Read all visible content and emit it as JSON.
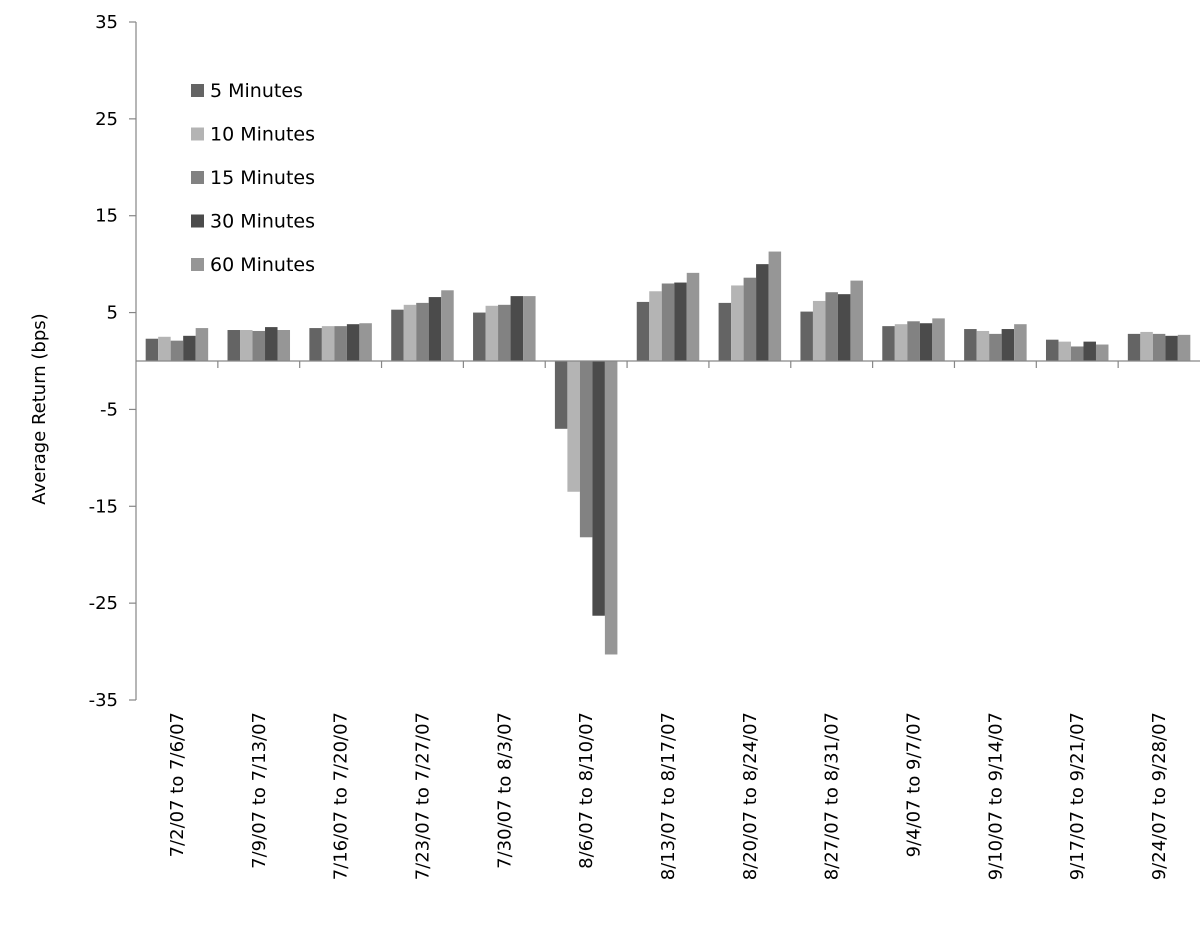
{
  "chart_data": {
    "type": "bar",
    "title": "",
    "xlabel": "",
    "ylabel": "Average Return (bps)",
    "ylim": [
      -35,
      35
    ],
    "yticks": [
      35,
      25,
      15,
      5,
      -5,
      -15,
      -25,
      -35
    ],
    "grid": false,
    "legend_position": "top-left",
    "categories": [
      "7/2/07 to 7/6/07",
      "7/9/07 to 7/13/07",
      "7/16/07 to 7/20/07",
      "7/23/07 to 7/27/07",
      "7/30/07 to 8/3/07",
      "8/6/07 to 8/10/07",
      "8/13/07 to 8/17/07",
      "8/20/07 to 8/24/07",
      "8/27/07 to 8/31/07",
      "9/4/07 to 9/7/07",
      "9/10/07 to 9/14/07",
      "9/17/07 to 9/21/07",
      "9/24/07 to 9/28/07"
    ],
    "series": [
      {
        "name": "5 Minutes",
        "color": "#646464",
        "values": [
          2.3,
          3.2,
          3.4,
          5.3,
          5.0,
          -7.0,
          6.1,
          6.0,
          5.1,
          3.6,
          3.3,
          2.2,
          2.8
        ]
      },
      {
        "name": "10 Minutes",
        "color": "#b4b4b4",
        "values": [
          2.5,
          3.2,
          3.6,
          5.8,
          5.7,
          -13.5,
          7.2,
          7.8,
          6.2,
          3.8,
          3.1,
          2.0,
          3.0
        ]
      },
      {
        "name": "15 Minutes",
        "color": "#828282",
        "values": [
          2.1,
          3.1,
          3.6,
          6.0,
          5.8,
          -18.2,
          8.0,
          8.6,
          7.1,
          4.1,
          2.8,
          1.5,
          2.8
        ]
      },
      {
        "name": "30 Minutes",
        "color": "#4b4b4b",
        "values": [
          2.6,
          3.5,
          3.8,
          6.6,
          6.7,
          -26.3,
          8.1,
          10.0,
          6.9,
          3.9,
          3.3,
          2.0,
          2.6
        ]
      },
      {
        "name": "60 Minutes",
        "color": "#969696",
        "values": [
          3.4,
          3.2,
          3.9,
          7.3,
          6.7,
          -30.3,
          9.1,
          11.3,
          8.3,
          4.4,
          3.8,
          1.7,
          2.7
        ]
      }
    ]
  }
}
